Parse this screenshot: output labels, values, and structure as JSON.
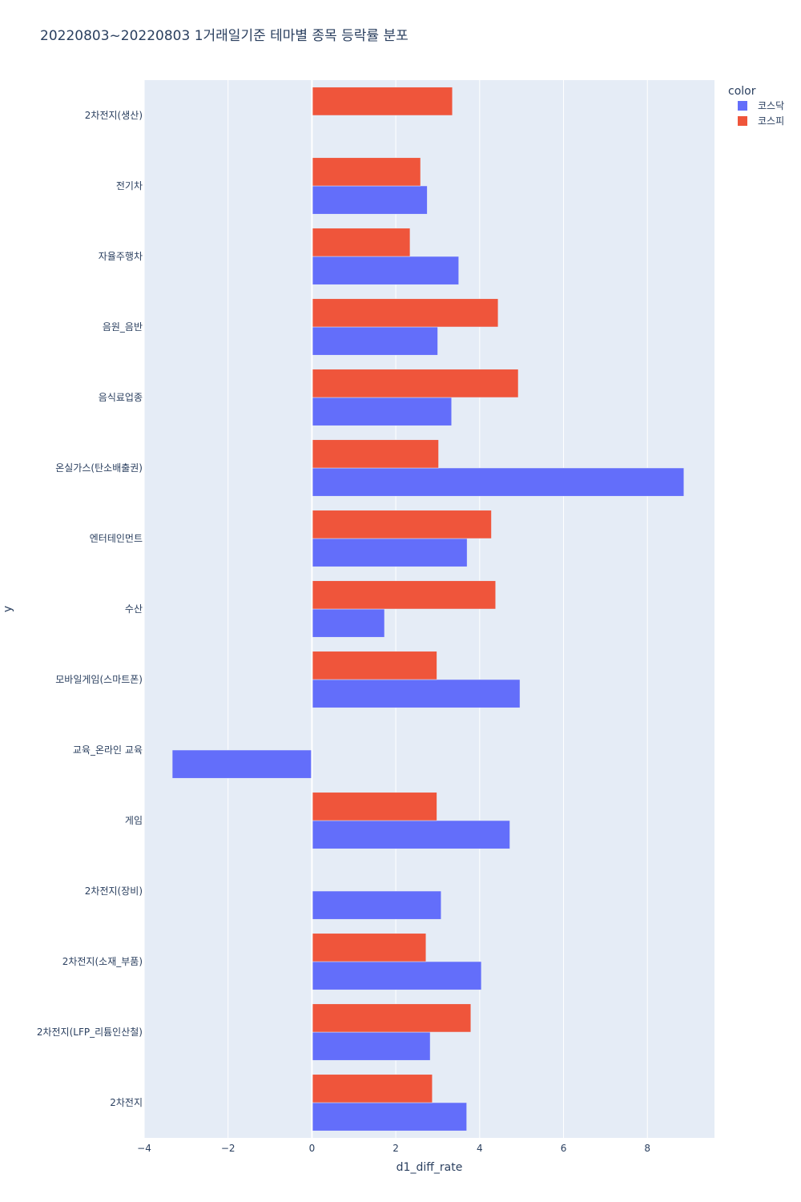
{
  "chart_data": {
    "type": "bar",
    "orientation": "horizontal",
    "title": "20220803~20220803 1거래일기준 테마별 종목 등락률 분포",
    "xlabel": "d1_diff_rate",
    "ylabel": "y",
    "xlim": [
      -4,
      9.6
    ],
    "xticks": [
      {
        "value": -4,
        "label": "−4"
      },
      {
        "value": -2,
        "label": "−2"
      },
      {
        "value": 0,
        "label": "0"
      },
      {
        "value": 2,
        "label": "2"
      },
      {
        "value": 4,
        "label": "4"
      },
      {
        "value": 6,
        "label": "6"
      },
      {
        "value": 8,
        "label": "8"
      }
    ],
    "categories": [
      "2차전지(생산)",
      "전기차",
      "자율주행차",
      "음원_음반",
      "음식료업종",
      "온실가스(탄소배출권)",
      "엔터테인먼트",
      "수산",
      "모바일게임(스마트폰)",
      "교육_온라인 교육",
      "게임",
      "2차전지(장비)",
      "2차전지(소재_부품)",
      "2차전지(LFP_리튬인산철)",
      "2차전지"
    ],
    "legend_title": "color",
    "legend_position": "top-right",
    "grid": true,
    "series": [
      {
        "name": "코스닥",
        "color": "#636efa",
        "values": [
          null,
          2.75,
          3.5,
          3.0,
          3.33,
          8.87,
          3.7,
          1.73,
          4.96,
          -3.33,
          4.72,
          3.08,
          4.04,
          2.82,
          3.69
        ]
      },
      {
        "name": "코스피",
        "color": "#ef553b",
        "values": [
          3.35,
          2.59,
          2.34,
          4.44,
          4.92,
          3.02,
          4.28,
          4.38,
          2.98,
          null,
          2.98,
          null,
          2.72,
          3.79,
          2.87
        ]
      }
    ]
  }
}
